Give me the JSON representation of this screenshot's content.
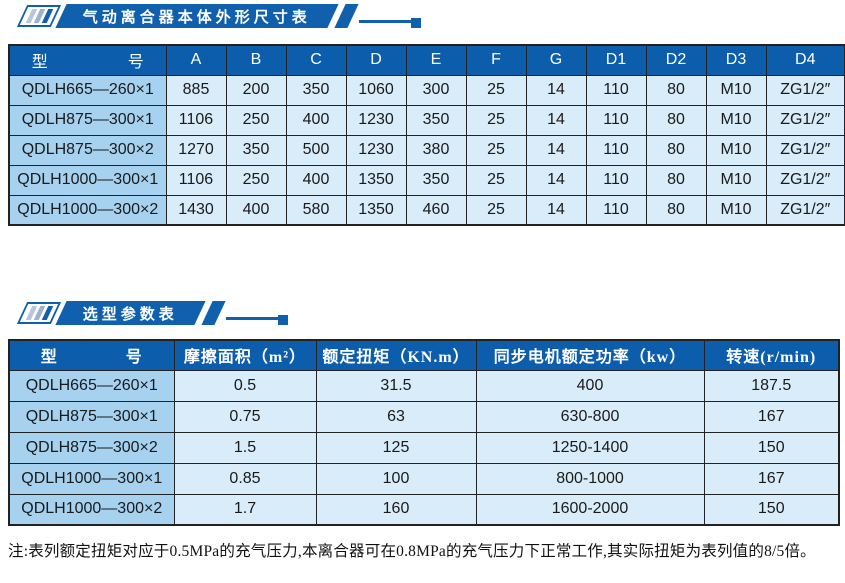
{
  "colors": {
    "primary_blue": "#1160ae",
    "header_blue": "#0d5dad",
    "model_column_bg": "#a6d2f0",
    "cell_bg": "#d9ecf9",
    "grid_border": "#222222",
    "stripe_light": "#b7c7de",
    "stripe_mid": "#9db2d0"
  },
  "section1": {
    "title": "气动离合器本体外形尺寸表",
    "table": {
      "headers": [
        "型　　　　　号",
        "A",
        "B",
        "C",
        "D",
        "E",
        "F",
        "G",
        "D1",
        "D2",
        "D3",
        "D4"
      ],
      "rows": [
        [
          "QDLH665—260×1",
          "885",
          "200",
          "350",
          "1060",
          "300",
          "25",
          "14",
          "110",
          "80",
          "M10",
          "ZG1/2″"
        ],
        [
          "QDLH875—300×1",
          "1106",
          "250",
          "400",
          "1230",
          "350",
          "25",
          "14",
          "110",
          "80",
          "M10",
          "ZG1/2″"
        ],
        [
          "QDLH875—300×2",
          "1270",
          "350",
          "500",
          "1230",
          "380",
          "25",
          "14",
          "110",
          "80",
          "M10",
          "ZG1/2″"
        ],
        [
          "QDLH1000—300×1",
          "1106",
          "250",
          "400",
          "1350",
          "350",
          "25",
          "14",
          "110",
          "80",
          "M10",
          "ZG1/2″"
        ],
        [
          "QDLH1000—300×2",
          "1430",
          "400",
          "580",
          "1350",
          "460",
          "25",
          "14",
          "110",
          "80",
          "M10",
          "ZG1/2″"
        ]
      ]
    }
  },
  "section2": {
    "title": "选型参数表",
    "table": {
      "headers": [
        "型　　　　号",
        "摩擦面积（m²）",
        "额定扭矩（KN.m）",
        "同步电机额定功率（kw）",
        "转速(r/min)"
      ],
      "rows": [
        [
          "QDLH665—260×1",
          "0.5",
          "31.5",
          "400",
          "187.5"
        ],
        [
          "QDLH875—300×1",
          "0.75",
          "63",
          "630-800",
          "167"
        ],
        [
          "QDLH875—300×2",
          "1.5",
          "125",
          "1250-1400",
          "150"
        ],
        [
          "QDLH1000—300×1",
          "0.85",
          "100",
          "800-1000",
          "167"
        ],
        [
          "QDLH1000—300×2",
          "1.7",
          "160",
          "1600-2000",
          "150"
        ]
      ]
    }
  },
  "footnote": "注:表列额定扭矩对应于0.5MPa的充气压力,本离合器可在0.8MPa的充气压力下正常工作,其实际扭矩为表列值的8/5倍。"
}
